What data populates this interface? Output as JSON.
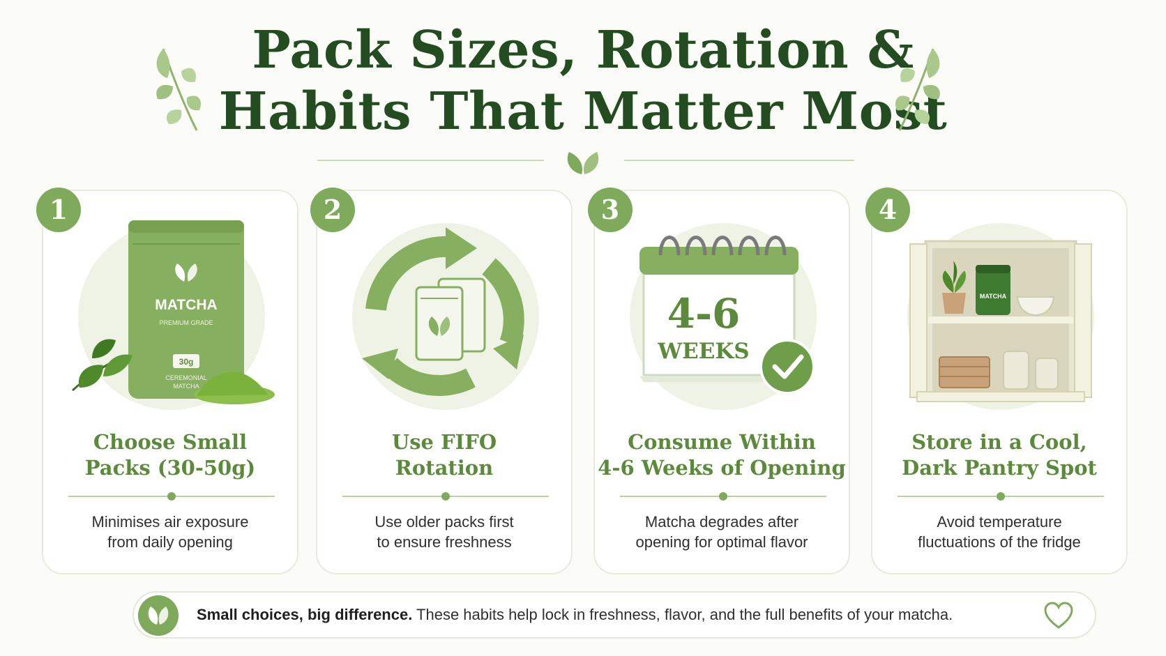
{
  "header": {
    "title_line1": "Pack Sizes, Rotation &",
    "title_line2": "Habits That Matter Most"
  },
  "colors": {
    "title": "#234d20",
    "accent_green": "#7fa95b",
    "card_title": "#5c8a3b",
    "background": "#fbfcf8"
  },
  "cards": [
    {
      "number": "1",
      "title_line1": "Choose Small",
      "title_line2": "Packs (30-50g)",
      "desc_line1": "Minimises air exposure",
      "desc_line2": "from daily opening",
      "icon": "matcha-pouch-icon",
      "pouch": {
        "brand": "MATCHA",
        "grade": "PREMIUM GRADE",
        "size": "30g",
        "type_line1": "CEREMONIAL",
        "type_line2": "MATCHA"
      }
    },
    {
      "number": "2",
      "title_line1": "Use FIFO",
      "title_line2": "Rotation",
      "desc_line1": "Use older packs first",
      "desc_line2": "to ensure freshness",
      "icon": "rotation-arrows-icon"
    },
    {
      "number": "3",
      "title_line1": "Consume Within",
      "title_line2": "4-6 Weeks of Opening",
      "desc_line1": "Matcha degrades after",
      "desc_line2": "opening for optimal flavor",
      "icon": "calendar-icon",
      "calendar": {
        "big": "4-6",
        "unit": "WEEKS"
      }
    },
    {
      "number": "4",
      "title_line1": "Store in a Cool,",
      "title_line2": "Dark Pantry Spot",
      "desc_line1": "Avoid temperature",
      "desc_line2": "fluctuations of the fridge",
      "icon": "pantry-cabinet-icon",
      "jar_label": "MATCHA"
    }
  ],
  "footer": {
    "bold": "Small choices, big difference.",
    "text": " These habits help lock in freshness, flavor, and the full benefits of your matcha.",
    "icon": "heart-icon"
  }
}
